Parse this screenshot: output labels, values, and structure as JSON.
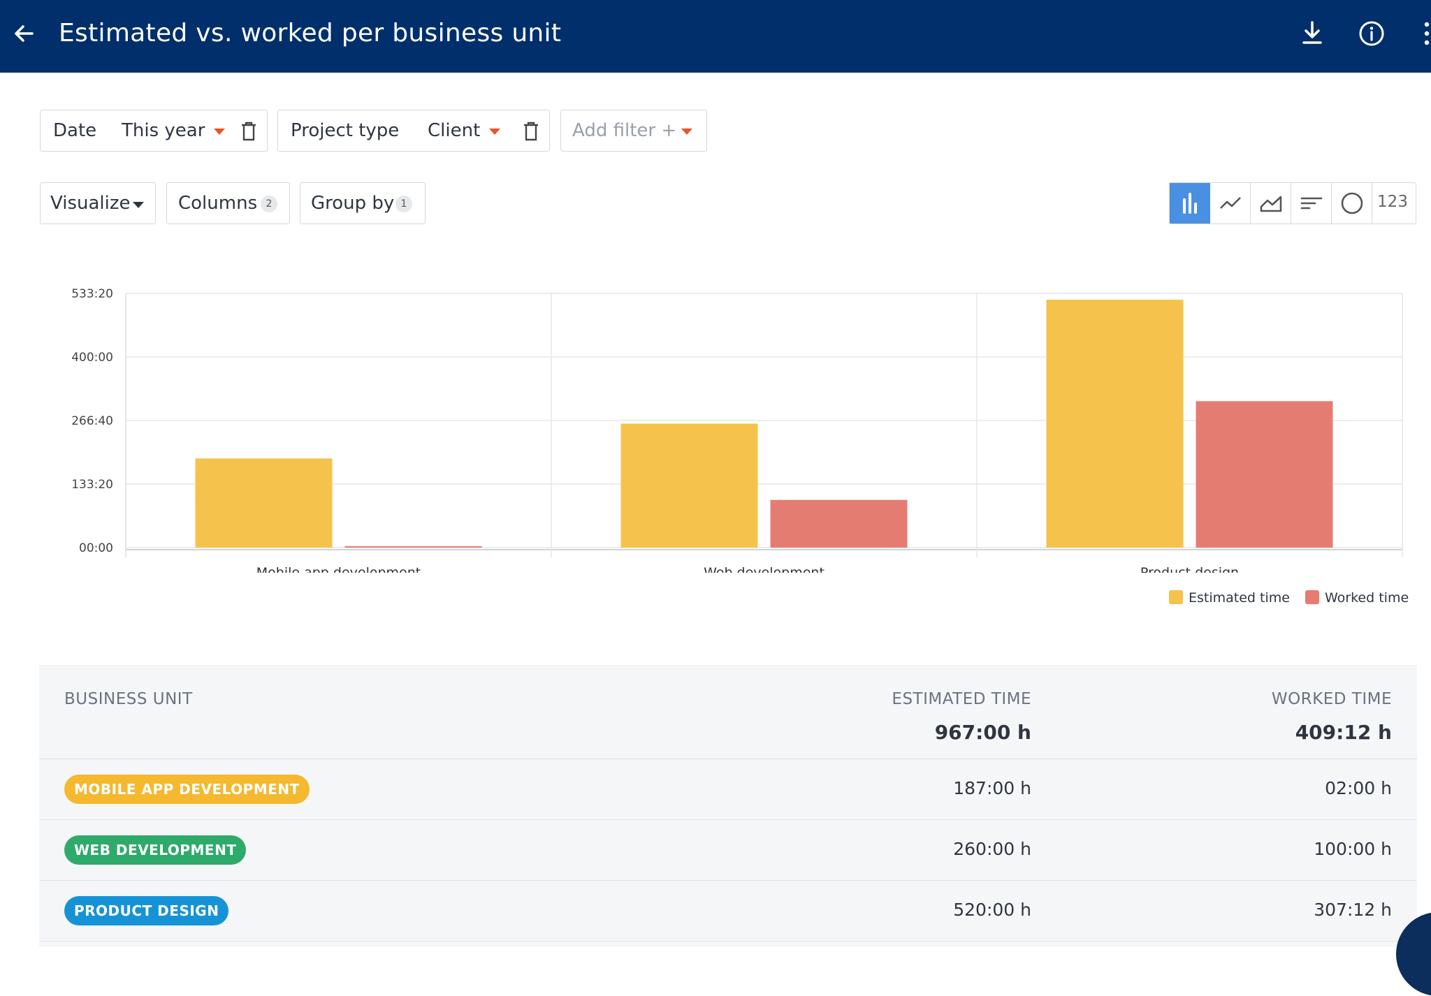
{
  "header": {
    "title": "Estimated vs. worked per business unit"
  },
  "filters": [
    {
      "name": "Date",
      "value": "This year"
    },
    {
      "name": "Project type",
      "value": "Client"
    }
  ],
  "add_filter": "Add filter +",
  "controls": {
    "visualize": "Visualize",
    "columns": "Columns",
    "columns_count": "2",
    "group_by": "Group by",
    "group_by_count": "1"
  },
  "viz_types": [
    "bar",
    "line",
    "area",
    "horizontal-bar",
    "pie",
    "number"
  ],
  "viz_number_label": "123",
  "chart_data": {
    "type": "bar",
    "categories": [
      "Mobile app development",
      "Web development",
      "Product design"
    ],
    "series": [
      {
        "name": "Estimated time",
        "values": [
          187,
          260,
          520
        ],
        "color": "#f5c24b"
      },
      {
        "name": "Worked time",
        "values": [
          2,
          100,
          307.2
        ],
        "color": "#e57c72"
      }
    ],
    "ylim": [
      0,
      533.33
    ],
    "y_ticks": [
      0,
      133.33,
      266.67,
      400,
      533.33
    ],
    "y_tick_labels": [
      "00:00",
      "133:20",
      "266:40",
      "400:00",
      "533:20"
    ],
    "grid": true,
    "legend": "bottom-right"
  },
  "table": {
    "headers": {
      "unit": "BUSINESS UNIT",
      "estimated": "ESTIMATED TIME",
      "worked": "WORKED TIME"
    },
    "totals": {
      "estimated": "967:00 h",
      "worked": "409:12 h"
    },
    "rows": [
      {
        "unit": "MOBILE APP DEVELOPMENT",
        "color": "#f5b82e",
        "estimated": "187:00 h",
        "worked": "02:00 h"
      },
      {
        "unit": "WEB DEVELOPMENT",
        "color": "#2eaa6a",
        "estimated": "260:00 h",
        "worked": "100:00 h"
      },
      {
        "unit": "PRODUCT DESIGN",
        "color": "#1693d6",
        "estimated": "520:00 h",
        "worked": "307:12 h"
      }
    ]
  }
}
